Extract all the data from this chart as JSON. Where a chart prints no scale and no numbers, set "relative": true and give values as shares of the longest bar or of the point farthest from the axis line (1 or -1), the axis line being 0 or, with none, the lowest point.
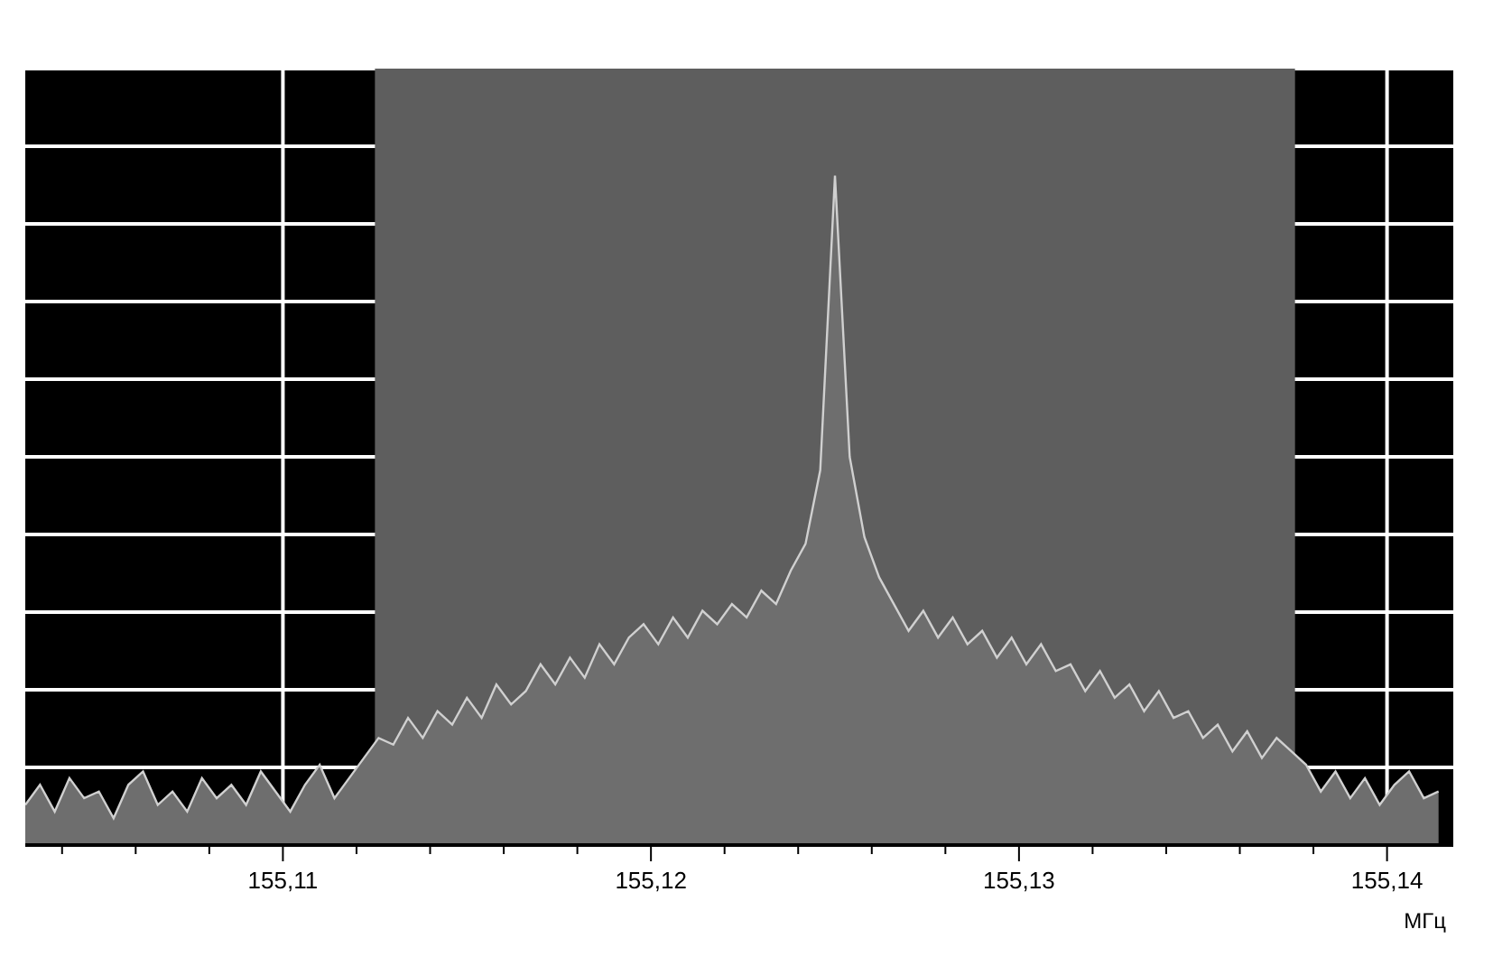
{
  "chart_data": {
    "type": "area",
    "relative": true,
    "xlabel": "МГц",
    "grid": true,
    "xlim": [
      155.103,
      155.1418
    ],
    "xticks": [
      {
        "value": 155.104,
        "label": null
      },
      {
        "value": 155.106,
        "label": null
      },
      {
        "value": 155.108,
        "label": null
      },
      {
        "value": 155.11,
        "label": "155,11"
      },
      {
        "value": 155.112,
        "label": null
      },
      {
        "value": 155.114,
        "label": null
      },
      {
        "value": 155.116,
        "label": null
      },
      {
        "value": 155.118,
        "label": null
      },
      {
        "value": 155.12,
        "label": "155,12"
      },
      {
        "value": 155.122,
        "label": null
      },
      {
        "value": 155.124,
        "label": null
      },
      {
        "value": 155.126,
        "label": null
      },
      {
        "value": 155.128,
        "label": null
      },
      {
        "value": 155.13,
        "label": "155,13"
      },
      {
        "value": 155.132,
        "label": null
      },
      {
        "value": 155.134,
        "label": null
      },
      {
        "value": 155.136,
        "label": null
      },
      {
        "value": 155.138,
        "label": null
      },
      {
        "value": 155.14,
        "label": "155,14"
      }
    ],
    "bands": [
      {
        "axis": "x",
        "from": 155.1125,
        "to": 155.1375,
        "color": "#5e5e5e"
      }
    ],
    "x": [
      155.103,
      155.1034,
      155.1038,
      155.1042,
      155.1046,
      155.105,
      155.1054,
      155.1058,
      155.1062,
      155.1066,
      155.107,
      155.1074,
      155.1078,
      155.1082,
      155.1086,
      155.109,
      155.1094,
      155.1098,
      155.1102,
      155.1106,
      155.111,
      155.1114,
      155.1118,
      155.1122,
      155.1126,
      155.113,
      155.1134,
      155.1138,
      155.1142,
      155.1146,
      155.115,
      155.1154,
      155.1158,
      155.1162,
      155.1166,
      155.117,
      155.1174,
      155.1178,
      155.1182,
      155.1186,
      155.119,
      155.1194,
      155.1198,
      155.1202,
      155.1206,
      155.121,
      155.1214,
      155.1218,
      155.1222,
      155.1226,
      155.123,
      155.1234,
      155.1238,
      155.1242,
      155.1246,
      155.125,
      155.1254,
      155.1258,
      155.1262,
      155.1266,
      155.127,
      155.1274,
      155.1278,
      155.1282,
      155.1286,
      155.129,
      155.1294,
      155.1298,
      155.1302,
      155.1306,
      155.131,
      155.1314,
      155.1318,
      155.1322,
      155.1326,
      155.133,
      155.1334,
      155.1338,
      155.1342,
      155.1346,
      155.135,
      155.1354,
      155.1358,
      155.1362,
      155.1366,
      155.137,
      155.1374,
      155.1378,
      155.1382,
      155.1386,
      155.139,
      155.1394,
      155.1398,
      155.1402,
      155.1406,
      155.141,
      155.1414
    ],
    "series": [
      {
        "color": "#d0d0d0",
        "values": [
          0.06,
          0.09,
          0.05,
          0.1,
          0.07,
          0.08,
          0.04,
          0.09,
          0.11,
          0.06,
          0.08,
          0.05,
          0.1,
          0.07,
          0.09,
          0.06,
          0.11,
          0.08,
          0.05,
          0.09,
          0.12,
          0.07,
          0.1,
          0.13,
          0.16,
          0.15,
          0.19,
          0.16,
          0.2,
          0.18,
          0.22,
          0.19,
          0.24,
          0.21,
          0.23,
          0.27,
          0.24,
          0.28,
          0.25,
          0.3,
          0.27,
          0.31,
          0.33,
          0.3,
          0.34,
          0.31,
          0.35,
          0.33,
          0.36,
          0.34,
          0.38,
          0.36,
          0.41,
          0.45,
          0.56,
          1.0,
          0.58,
          0.46,
          0.4,
          0.36,
          0.32,
          0.35,
          0.31,
          0.34,
          0.3,
          0.32,
          0.28,
          0.31,
          0.27,
          0.3,
          0.26,
          0.27,
          0.23,
          0.26,
          0.22,
          0.24,
          0.2,
          0.23,
          0.19,
          0.2,
          0.16,
          0.18,
          0.14,
          0.17,
          0.13,
          0.16,
          0.14,
          0.12,
          0.08,
          0.11,
          0.07,
          0.1,
          0.06,
          0.09,
          0.11,
          0.07,
          0.08
        ]
      }
    ]
  }
}
